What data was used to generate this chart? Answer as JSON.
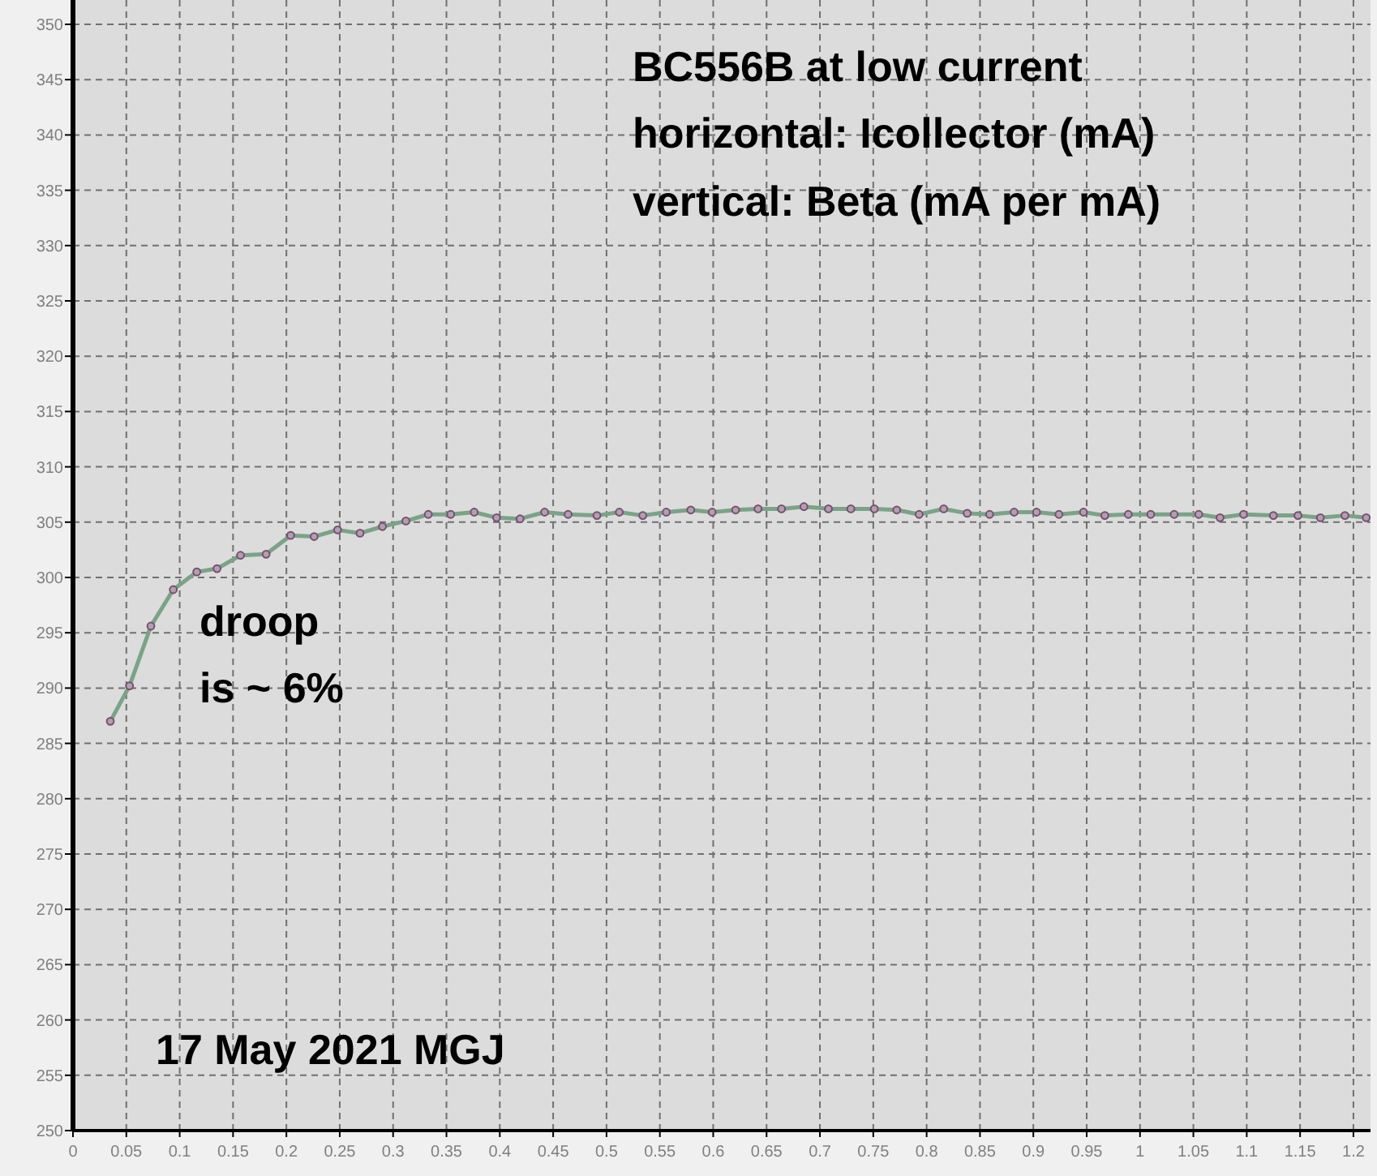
{
  "chart_data": {
    "type": "line",
    "annotations": [
      "BC556B at low current",
      "horizontal: Icollector (mA)",
      "vertical: Beta (mA per mA)",
      "droop",
      "is ~ 6%",
      "17 May 2021  MGJ"
    ],
    "series": [
      {
        "color": "#7aa387",
        "x": [
          0.035,
          0.053,
          0.073,
          0.094,
          0.116,
          0.135,
          0.157,
          0.181,
          0.204,
          0.226,
          0.248,
          0.269,
          0.29,
          0.312,
          0.333,
          0.354,
          0.376,
          0.397,
          0.419,
          0.442,
          0.464,
          0.491,
          0.512,
          0.534,
          0.556,
          0.579,
          0.599,
          0.621,
          0.642,
          0.664,
          0.685,
          0.708,
          0.729,
          0.751,
          0.772,
          0.793,
          0.816,
          0.838,
          0.859,
          0.882,
          0.903,
          0.924,
          0.947,
          0.967,
          0.989,
          1.01,
          1.032,
          1.055,
          1.075,
          1.097,
          1.125,
          1.148,
          1.169,
          1.192,
          1.212
        ],
        "values": [
          287.0,
          290.2,
          295.6,
          298.9,
          300.5,
          300.8,
          302.0,
          302.1,
          303.8,
          303.7,
          304.3,
          304.0,
          304.6,
          305.1,
          305.7,
          305.7,
          305.9,
          305.4,
          305.3,
          305.9,
          305.7,
          305.6,
          305.9,
          305.6,
          305.9,
          306.1,
          305.9,
          306.1,
          306.2,
          306.2,
          306.4,
          306.2,
          306.2,
          306.2,
          306.1,
          305.7,
          306.2,
          305.8,
          305.7,
          305.9,
          305.9,
          305.7,
          305.9,
          305.6,
          305.7,
          305.7,
          305.7,
          305.7,
          305.4,
          305.7,
          305.6,
          305.6,
          305.4,
          305.6,
          305.4
        ]
      }
    ],
    "xlim": [
      0,
      1.216
    ],
    "xticks": [
      0,
      0.05,
      0.1,
      0.15,
      0.2,
      0.25,
      0.3,
      0.35,
      0.4,
      0.45,
      0.5,
      0.55,
      0.6,
      0.65,
      0.7,
      0.75,
      0.8,
      0.85,
      0.9,
      0.95,
      1,
      1.05,
      1.1,
      1.15,
      1.2
    ],
    "ylim": [
      250,
      350
    ],
    "yticks": [
      250,
      255,
      260,
      265,
      270,
      275,
      280,
      285,
      290,
      295,
      300,
      305,
      310,
      315,
      320,
      325,
      330,
      335,
      340,
      345,
      350
    ],
    "grid": true,
    "marker": "circle",
    "line_style": "solid"
  }
}
